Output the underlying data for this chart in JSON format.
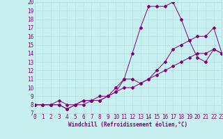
{
  "xlabel": "Windchill (Refroidissement éolien,°C)",
  "bg_color": "#c8f0f0",
  "line_color": "#800080",
  "grid_color": "#b0dede",
  "xmin": 0,
  "xmax": 23,
  "ymin": 7,
  "ymax": 20,
  "line1_x": [
    0,
    1,
    2,
    3,
    4,
    5,
    6,
    7,
    8,
    9,
    10,
    11,
    12,
    13,
    14,
    15,
    16,
    17,
    18,
    19,
    20,
    21,
    22,
    23
  ],
  "line1_y": [
    8,
    8,
    8,
    8,
    7.5,
    8,
    8,
    8.5,
    8.5,
    9,
    10,
    11,
    14,
    17,
    19.5,
    19.5,
    19.5,
    20,
    18,
    15.5,
    13.5,
    13,
    14.5,
    14
  ],
  "line2_x": [
    0,
    1,
    2,
    3,
    4,
    5,
    6,
    7,
    8,
    9,
    10,
    11,
    12,
    13,
    14,
    15,
    16,
    17,
    18,
    19,
    20,
    21,
    22,
    23
  ],
  "line2_y": [
    8,
    8,
    8,
    8,
    7.5,
    8,
    8.5,
    8.5,
    8.5,
    9,
    9.5,
    11,
    11,
    10.5,
    11,
    12,
    13,
    14.5,
    15,
    15.5,
    16,
    16,
    17,
    14
  ],
  "line3_x": [
    0,
    1,
    2,
    3,
    4,
    5,
    6,
    7,
    8,
    9,
    10,
    11,
    12,
    13,
    14,
    15,
    16,
    17,
    18,
    19,
    20,
    21,
    22,
    23
  ],
  "line3_y": [
    8,
    8,
    8,
    8.5,
    8,
    8,
    8.5,
    8.5,
    9,
    9,
    9.5,
    10,
    10,
    10.5,
    11,
    11.5,
    12,
    12.5,
    13,
    13.5,
    14,
    14,
    14.5,
    14
  ],
  "marker_size": 2.0,
  "line_width": 0.7,
  "tick_fontsize": 5.5,
  "xlabel_fontsize": 5.5
}
